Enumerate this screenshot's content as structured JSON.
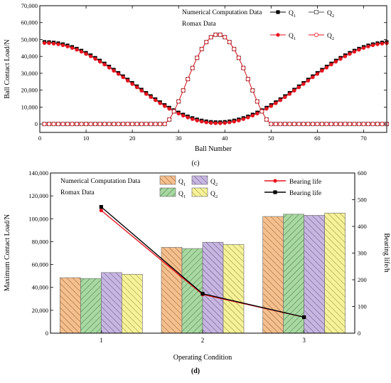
{
  "chart_data": [
    {
      "type": "line",
      "panel_label": "(c)",
      "xlabel": "Ball Number",
      "ylabel": "Ball Contact Load/N",
      "xlim": [
        0,
        75
      ],
      "ylim": [
        -5000,
        70000
      ],
      "xticks": [
        0,
        10,
        20,
        30,
        40,
        50,
        60,
        70
      ],
      "yticks": [
        0,
        10000,
        20000,
        30000,
        40000,
        50000,
        60000,
        70000
      ],
      "ytick_labels": [
        "0",
        "10,000",
        "20,000",
        "30,000",
        "40,000",
        "50,000",
        "60,000",
        "70,000"
      ],
      "legend": {
        "placement": "top-right",
        "group_labels": [
          "Numerical Computation Data",
          "Romax Data"
        ],
        "entries": [
          "Q1",
          "Q1",
          "Q2",
          "Q2"
        ]
      },
      "ball_count": 75,
      "q1_profile": {
        "min_value": 1000,
        "max_value": 48500,
        "min_ball": 38.5
      },
      "q2_profile": {
        "loaded_from": 27,
        "loaded_to": 50,
        "peak_value": 53000,
        "peak_ball": 38.5
      },
      "series": [
        {
          "name": "Q1",
          "source": "Numerical Computation Data",
          "color": "#000000",
          "marker": "filled-square"
        },
        {
          "name": "Q2",
          "source": "Numerical Computation Data",
          "color": "#555555",
          "marker": "open-square"
        },
        {
          "name": "Q1",
          "source": "Romax Data",
          "color": "#e8141e",
          "marker": "filled-circle"
        },
        {
          "name": "Q2",
          "source": "Romax Data",
          "color": "#e8141e",
          "marker": "open-circle"
        }
      ]
    },
    {
      "type": "bar",
      "panel_label": "(d)",
      "xlabel": "Operating Condition",
      "ylabel": "Maximum Contact Load/N",
      "y2label": "Bearing life/h",
      "categories": [
        "1",
        "2",
        "3"
      ],
      "ylim": [
        0,
        140000
      ],
      "y2lim": [
        0,
        600
      ],
      "yticks": [
        0,
        20000,
        40000,
        60000,
        80000,
        100000,
        120000,
        140000
      ],
      "ytick_labels": [
        "0",
        "20,000",
        "40,000",
        "60,000",
        "80,000",
        "100,000",
        "120,000",
        "140,000"
      ],
      "y2ticks": [
        0,
        100,
        200,
        300,
        400,
        500,
        600
      ],
      "legend": {
        "placement": "top-left",
        "group_labels": [
          "Numerical Computation Data",
          "Romax Data"
        ],
        "entries": [
          "Q1",
          "Q2",
          "Q1",
          "Q2",
          "Bearing life",
          "Bearing life"
        ]
      },
      "series": [
        {
          "name": "Q1",
          "source": "Numerical Computation Data",
          "color": "#f5c08e",
          "values": [
            48500,
            75000,
            102000
          ]
        },
        {
          "name": "Q1",
          "source": "Romax Data",
          "color": "#a9d8a2",
          "values": [
            47800,
            74000,
            104000
          ]
        },
        {
          "name": "Q2",
          "source": "Numerical Computation Data",
          "color": "#c7b6e0",
          "values": [
            53000,
            79500,
            103000
          ]
        },
        {
          "name": "Q2",
          "source": "Romax Data",
          "color": "#f6f29a",
          "values": [
            51500,
            77500,
            105000
          ]
        }
      ],
      "lines": [
        {
          "name": "Bearing life",
          "source": "Numerical Computation Data",
          "color": "#e8141e",
          "values": [
            460,
            145,
            60
          ]
        },
        {
          "name": "Bearing life",
          "source": "Romax Data",
          "color": "#000000",
          "values": [
            473,
            148,
            60
          ]
        }
      ]
    }
  ]
}
